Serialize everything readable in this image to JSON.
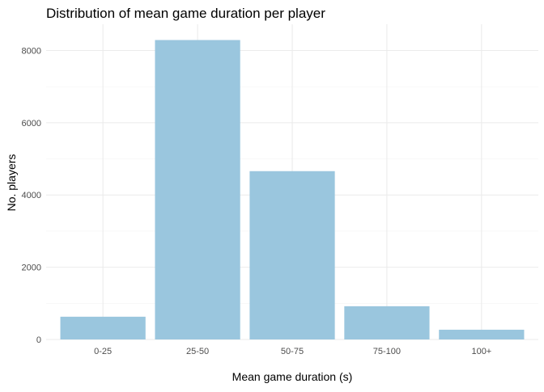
{
  "chart_data": {
    "type": "bar",
    "title": "Distribution of mean game duration per player",
    "xlabel": "Mean game duration (s)",
    "ylabel": "No. players",
    "categories": [
      "0-25",
      "25-50",
      "50-75",
      "75-100",
      "100+"
    ],
    "values": [
      630,
      8290,
      4660,
      920,
      270
    ],
    "ylim": [
      0,
      8500
    ],
    "yticks": [
      0,
      2000,
      4000,
      6000,
      8000
    ],
    "grid": true,
    "legend": "none",
    "colors": {
      "bar": "#9ac6de",
      "grid_major": "#ebebeb",
      "grid_minor": "#f4f4f4",
      "tick_text": "#4d4d4d",
      "title_text": "#000000"
    }
  }
}
